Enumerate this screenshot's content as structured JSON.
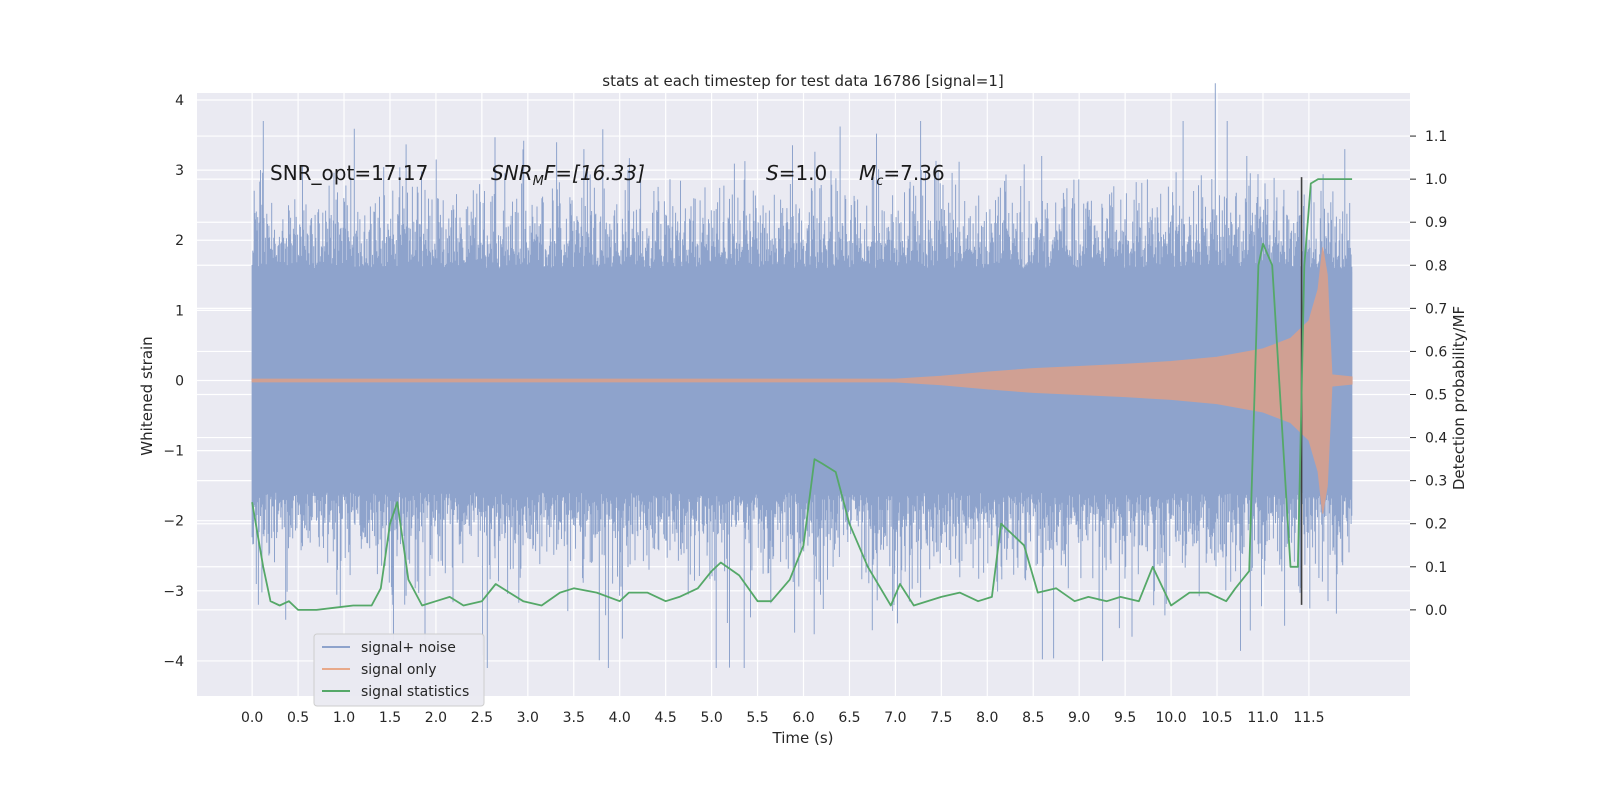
{
  "chart_data": {
    "type": "line",
    "title": "stats at each timestep for test data 16786 [signal=1]",
    "xlabel": "Time (s)",
    "ylabel_left": "Whitened strain",
    "ylabel_right": "Detection probability/MF",
    "xlim": [
      -0.6,
      12.6
    ],
    "ylim_left": [
      -4.5,
      4.1
    ],
    "ylim_right": [
      -0.2,
      1.2
    ],
    "x_ticks": [
      0.0,
      0.5,
      1.0,
      1.5,
      2.0,
      2.5,
      3.0,
      3.5,
      4.0,
      4.5,
      5.0,
      5.5,
      6.0,
      6.5,
      7.0,
      7.5,
      8.0,
      8.5,
      9.0,
      9.5,
      10.0,
      10.5,
      11.0,
      11.5
    ],
    "x_tick_labels": [
      "0.0",
      "0.5",
      "1.0",
      "1.5",
      "2.0",
      "2.5",
      "3.0",
      "3.5",
      "4.0",
      "4.5",
      "5.0",
      "5.5",
      "6.0",
      "6.5",
      "7.0",
      "7.5",
      "8.0",
      "8.5",
      "9.0",
      "9.5",
      "10.0",
      "10.5",
      "11.0",
      "11.5"
    ],
    "y_left_ticks": [
      -4,
      -3,
      -2,
      -1,
      0,
      1,
      2,
      3,
      4
    ],
    "y_left_tick_labels": [
      "−4",
      "−3",
      "−2",
      "−1",
      "0",
      "1",
      "2",
      "3",
      "4"
    ],
    "y_right_ticks": [
      0.0,
      0.1,
      0.2,
      0.3,
      0.4,
      0.5,
      0.6,
      0.7,
      0.8,
      0.9,
      1.0,
      1.1
    ],
    "y_right_tick_labels": [
      "0.0",
      "0.1",
      "0.2",
      "0.3",
      "0.4",
      "0.5",
      "0.6",
      "0.7",
      "0.8",
      "0.9",
      "1.0",
      "1.1"
    ],
    "grid": true,
    "legend_position": "lower-left",
    "annotations": {
      "snr_opt": "SNR_opt=17.17",
      "snr_mf_symbol": "SNR",
      "snr_mf_sub": "M",
      "snr_mf_tail": "F=[16.33]",
      "s_symbol": "S",
      "s_tail": "=1.0",
      "mc_symbol": "M",
      "mc_sub": "c",
      "mc_tail": "=7.36"
    },
    "series": [
      {
        "name": "signal+ noise",
        "color": "#8ea3cc",
        "axis": "left",
        "description_type": "noise_band",
        "t_range": [
          0.0,
          11.97
        ],
        "envelope_upper": 2.5,
        "envelope_lower": -2.5,
        "peak_max": 3.7,
        "peak_min": -4.1
      },
      {
        "name": "signal only",
        "color": "#dd8452",
        "axis": "left",
        "description_type": "chirp",
        "t": [
          0.0,
          7.0,
          7.5,
          8.0,
          8.5,
          9.0,
          9.5,
          10.0,
          10.5,
          11.0,
          11.3,
          11.5,
          11.6,
          11.65,
          11.7,
          11.75,
          11.97
        ],
        "amplitude": [
          0.02,
          0.02,
          0.06,
          0.12,
          0.17,
          0.2,
          0.23,
          0.27,
          0.33,
          0.45,
          0.6,
          0.85,
          1.3,
          1.9,
          1.5,
          0.08,
          0.05
        ]
      },
      {
        "name": "signal statistics",
        "color": "#55a868",
        "axis": "right",
        "t": [
          0.0,
          0.12,
          0.2,
          0.3,
          0.4,
          0.5,
          0.7,
          0.9,
          1.1,
          1.3,
          1.4,
          1.5,
          1.58,
          1.7,
          1.85,
          2.0,
          2.15,
          2.3,
          2.5,
          2.65,
          2.8,
          2.95,
          3.15,
          3.35,
          3.5,
          3.75,
          4.0,
          4.1,
          4.3,
          4.5,
          4.65,
          4.85,
          5.0,
          5.1,
          5.3,
          5.5,
          5.65,
          5.85,
          6.0,
          6.12,
          6.2,
          6.35,
          6.5,
          6.7,
          6.95,
          7.05,
          7.2,
          7.5,
          7.7,
          7.9,
          8.05,
          8.15,
          8.4,
          8.55,
          8.75,
          8.95,
          9.1,
          9.3,
          9.45,
          9.65,
          9.8,
          10.0,
          10.2,
          10.4,
          10.6,
          10.7,
          10.85,
          10.95,
          11.0,
          11.1,
          11.3,
          11.38,
          11.45,
          11.52,
          11.6,
          11.75,
          11.97
        ],
        "values": [
          0.25,
          0.1,
          0.02,
          0.01,
          0.02,
          0.0,
          0.0,
          0.005,
          0.01,
          0.01,
          0.05,
          0.2,
          0.25,
          0.07,
          0.01,
          0.02,
          0.03,
          0.01,
          0.02,
          0.06,
          0.04,
          0.02,
          0.01,
          0.04,
          0.05,
          0.04,
          0.02,
          0.04,
          0.04,
          0.02,
          0.03,
          0.05,
          0.09,
          0.11,
          0.08,
          0.02,
          0.02,
          0.07,
          0.15,
          0.35,
          0.34,
          0.32,
          0.2,
          0.1,
          0.01,
          0.06,
          0.01,
          0.03,
          0.04,
          0.02,
          0.03,
          0.2,
          0.15,
          0.04,
          0.05,
          0.02,
          0.03,
          0.02,
          0.03,
          0.02,
          0.1,
          0.01,
          0.04,
          0.04,
          0.02,
          0.05,
          0.09,
          0.8,
          0.85,
          0.8,
          0.1,
          0.1,
          0.8,
          0.99,
          1.0,
          1.0,
          1.0
        ]
      }
    ],
    "vertical_marker": {
      "x": 11.42,
      "color": "#404040"
    }
  }
}
